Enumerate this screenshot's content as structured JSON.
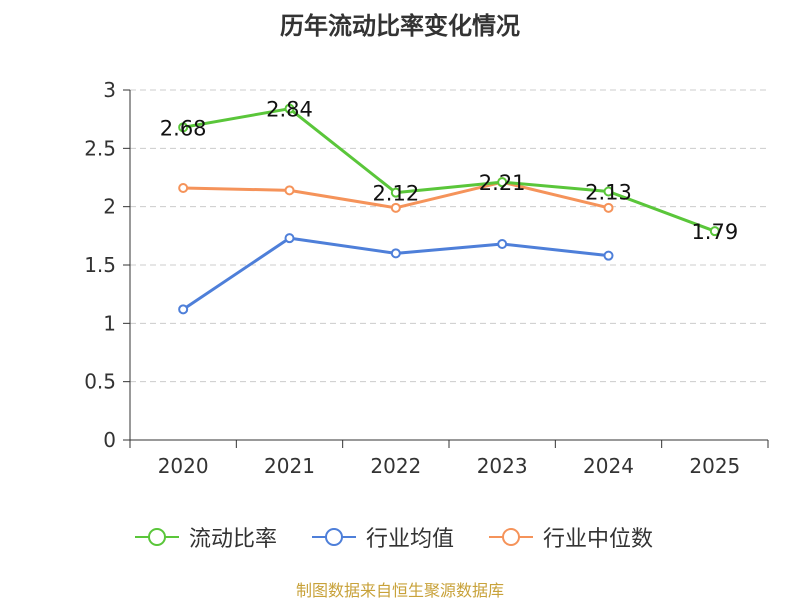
{
  "chart_data": {
    "type": "line",
    "title": "历年流动比率变化情况",
    "categories": [
      "2020",
      "2021",
      "2022",
      "2023",
      "2024",
      "2025"
    ],
    "ylim": [
      0,
      3
    ],
    "yticks": [
      "0",
      "0.5",
      "1",
      "1.5",
      "2",
      "2.5",
      "3"
    ],
    "ytick_values": [
      0,
      0.5,
      1,
      1.5,
      2,
      2.5,
      3
    ],
    "grid": true,
    "legend_position": "bottom",
    "series": [
      {
        "name": "流动比率",
        "color": "#5ac63a",
        "values": [
          2.68,
          2.84,
          2.12,
          2.21,
          2.13,
          1.79
        ],
        "labels": [
          "2.68",
          "2.84",
          "2.12",
          "2.21",
          "2.13",
          "1.79"
        ]
      },
      {
        "name": "行业均值",
        "color": "#4e7fd9",
        "values": [
          1.12,
          1.73,
          1.6,
          1.68,
          1.58,
          null
        ]
      },
      {
        "name": "行业中位数",
        "color": "#f5935a",
        "values": [
          2.16,
          2.14,
          1.99,
          2.21,
          1.99,
          null
        ]
      }
    ],
    "source": "制图数据来自恒生聚源数据库"
  }
}
